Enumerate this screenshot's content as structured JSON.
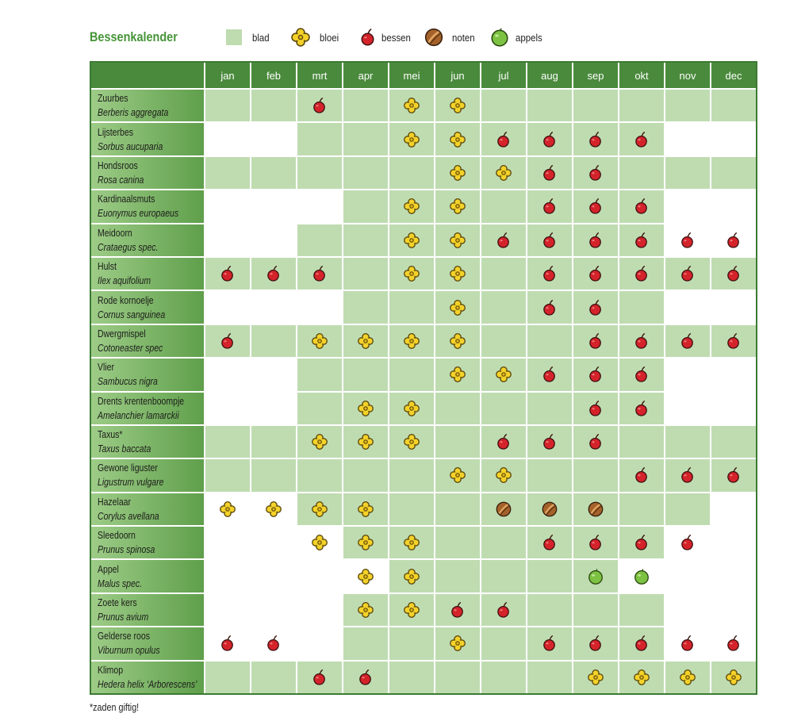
{
  "colors": {
    "title": "#469438",
    "header": "#4a8a3c",
    "border": "#3c7a33",
    "blad": "#bfdcb1",
    "name_start": "#9dcc87",
    "name_end": "#5f9f4b",
    "bloei": "#f4d229",
    "bessen": "#d4232a",
    "noten": "#a4622a",
    "appels": "#7dc243"
  },
  "chart_data": {
    "type": "table",
    "title": "Bessenkalender",
    "legend": [
      {
        "label": "blad",
        "icon": "leaf-swatch"
      },
      {
        "label": "bloei",
        "icon": "flower-icon"
      },
      {
        "label": "bessen",
        "icon": "berry-icon"
      },
      {
        "label": "noten",
        "icon": "nut-icon"
      },
      {
        "label": "appels",
        "icon": "apple-icon"
      }
    ],
    "columns": [
      "jan",
      "feb",
      "mrt",
      "apr",
      "mei",
      "jun",
      "jul",
      "aug",
      "sep",
      "okt",
      "nov",
      "dec"
    ],
    "rows": [
      {
        "name": "Zuurbes",
        "latin": "Berberis aggregata",
        "blad": [
          1,
          1,
          1,
          1,
          1,
          1,
          1,
          1,
          1,
          1,
          1,
          1
        ],
        "marks": [
          null,
          null,
          "berry-icon",
          null,
          "flower-icon",
          "flower-icon",
          null,
          null,
          null,
          null,
          null,
          null
        ]
      },
      {
        "name": "Lijsterbes",
        "latin": "Sorbus aucuparia",
        "blad": [
          0,
          0,
          1,
          1,
          1,
          1,
          1,
          1,
          1,
          1,
          0,
          0
        ],
        "marks": [
          null,
          null,
          null,
          null,
          "flower-icon",
          "flower-icon",
          "berry-icon",
          "berry-icon",
          "berry-icon",
          "berry-icon",
          null,
          null
        ]
      },
      {
        "name": "Hondsroos",
        "latin": "Rosa canina",
        "blad": [
          1,
          1,
          1,
          1,
          1,
          1,
          1,
          1,
          1,
          1,
          1,
          1
        ],
        "marks": [
          null,
          null,
          null,
          null,
          null,
          "flower-icon",
          "flower-icon",
          "berry-icon",
          "berry-icon",
          null,
          null,
          null
        ]
      },
      {
        "name": "Kardinaalsmuts",
        "latin": "Euonymus europaeus",
        "blad": [
          0,
          0,
          0,
          1,
          1,
          1,
          1,
          1,
          1,
          1,
          0,
          0
        ],
        "marks": [
          null,
          null,
          null,
          null,
          "flower-icon",
          "flower-icon",
          null,
          "berry-icon",
          "berry-icon",
          "berry-icon",
          null,
          null
        ]
      },
      {
        "name": "Meidoorn",
        "latin": "Crataegus spec.",
        "blad": [
          0,
          0,
          1,
          1,
          1,
          1,
          1,
          1,
          1,
          1,
          0,
          0
        ],
        "marks": [
          null,
          null,
          null,
          null,
          "flower-icon",
          "flower-icon",
          "berry-icon",
          "berry-icon",
          "berry-icon",
          "berry-icon",
          "berry-icon",
          "berry-icon"
        ]
      },
      {
        "name": "Hulst",
        "latin": "Ilex aquifolium",
        "blad": [
          1,
          1,
          1,
          1,
          1,
          1,
          1,
          1,
          1,
          1,
          1,
          1
        ],
        "marks": [
          "berry-icon",
          "berry-icon",
          "berry-icon",
          null,
          "flower-icon",
          "flower-icon",
          null,
          "berry-icon",
          "berry-icon",
          "berry-icon",
          "berry-icon",
          "berry-icon"
        ]
      },
      {
        "name": "Rode kornoelje",
        "latin": "Cornus sanguinea",
        "blad": [
          0,
          0,
          0,
          1,
          1,
          1,
          1,
          1,
          1,
          1,
          0,
          0
        ],
        "marks": [
          null,
          null,
          null,
          null,
          null,
          "flower-icon",
          null,
          "berry-icon",
          "berry-icon",
          null,
          null,
          null
        ]
      },
      {
        "name": "Dwergmispel",
        "latin": "Cotoneaster spec",
        "blad": [
          1,
          1,
          1,
          1,
          1,
          1,
          1,
          1,
          1,
          1,
          1,
          1
        ],
        "marks": [
          "berry-icon",
          null,
          "flower-icon",
          "flower-icon",
          "flower-icon",
          "flower-icon",
          null,
          null,
          "berry-icon",
          "berry-icon",
          "berry-icon",
          "berry-icon"
        ]
      },
      {
        "name": "Vlier",
        "latin": "Sambucus nigra",
        "blad": [
          0,
          0,
          1,
          1,
          1,
          1,
          1,
          1,
          1,
          1,
          0,
          0
        ],
        "marks": [
          null,
          null,
          null,
          null,
          null,
          "flower-icon",
          "flower-icon",
          "berry-icon",
          "berry-icon",
          "berry-icon",
          null,
          null
        ]
      },
      {
        "name": "Drents krentenboompje",
        "latin": "Amelanchier lamarckii",
        "blad": [
          0,
          0,
          1,
          1,
          1,
          1,
          1,
          1,
          1,
          1,
          0,
          0
        ],
        "marks": [
          null,
          null,
          null,
          "flower-icon",
          "flower-icon",
          null,
          null,
          null,
          "berry-icon",
          "berry-icon",
          null,
          null
        ]
      },
      {
        "name": "Taxus*",
        "latin": "Taxus baccata",
        "blad": [
          1,
          1,
          1,
          1,
          1,
          1,
          1,
          1,
          1,
          1,
          1,
          1
        ],
        "marks": [
          null,
          null,
          "flower-icon",
          "flower-icon",
          "flower-icon",
          null,
          "berry-icon",
          "berry-icon",
          "berry-icon",
          null,
          null,
          null
        ]
      },
      {
        "name": "Gewone liguster",
        "latin": "Ligustrum vulgare",
        "blad": [
          1,
          1,
          1,
          1,
          1,
          1,
          1,
          1,
          1,
          1,
          1,
          1
        ],
        "marks": [
          null,
          null,
          null,
          null,
          null,
          "flower-icon",
          "flower-icon",
          null,
          null,
          "berry-icon",
          "berry-icon",
          "berry-icon"
        ]
      },
      {
        "name": "Hazelaar",
        "latin": "Corylus avellana",
        "blad": [
          0,
          0,
          1,
          1,
          1,
          1,
          1,
          1,
          1,
          1,
          1,
          0
        ],
        "marks": [
          "flower-icon",
          "flower-icon",
          "flower-icon",
          "flower-icon",
          null,
          null,
          "nut-icon",
          "nut-icon",
          "nut-icon",
          null,
          null,
          null
        ]
      },
      {
        "name": "Sleedoorn",
        "latin": "Prunus spinosa",
        "blad": [
          0,
          0,
          0,
          1,
          1,
          1,
          1,
          1,
          1,
          1,
          0,
          0
        ],
        "marks": [
          null,
          null,
          "flower-icon",
          "flower-icon",
          "flower-icon",
          null,
          null,
          "berry-icon",
          "berry-icon",
          "berry-icon",
          "berry-icon",
          null
        ]
      },
      {
        "name": "Appel",
        "latin": "Malus spec.",
        "blad": [
          0,
          0,
          0,
          0,
          1,
          1,
          1,
          1,
          1,
          0,
          0,
          0
        ],
        "marks": [
          null,
          null,
          null,
          "flower-icon",
          "flower-icon",
          null,
          null,
          null,
          "apple-icon",
          "apple-icon",
          null,
          null
        ]
      },
      {
        "name": "Zoete kers",
        "latin": "Prunus avium",
        "blad": [
          0,
          0,
          0,
          1,
          1,
          1,
          1,
          1,
          1,
          1,
          0,
          0
        ],
        "marks": [
          null,
          null,
          null,
          "flower-icon",
          "flower-icon",
          "berry-icon",
          "berry-icon",
          null,
          null,
          null,
          null,
          null
        ]
      },
      {
        "name": "Gelderse roos",
        "latin": "Viburnum opulus",
        "blad": [
          0,
          0,
          0,
          1,
          1,
          1,
          1,
          1,
          1,
          1,
          0,
          0
        ],
        "marks": [
          "berry-icon",
          "berry-icon",
          null,
          null,
          null,
          "flower-icon",
          null,
          "berry-icon",
          "berry-icon",
          "berry-icon",
          "berry-icon",
          "berry-icon"
        ]
      },
      {
        "name": "Klimop",
        "latin": "Hedera helix ‘Arborescens’",
        "blad": [
          1,
          1,
          1,
          1,
          1,
          1,
          1,
          1,
          1,
          1,
          1,
          1
        ],
        "marks": [
          null,
          null,
          "berry-icon",
          "berry-icon",
          null,
          null,
          null,
          null,
          "flower-icon",
          "flower-icon",
          "flower-icon",
          "flower-icon"
        ]
      }
    ],
    "footnote": "*zaden giftig!"
  }
}
